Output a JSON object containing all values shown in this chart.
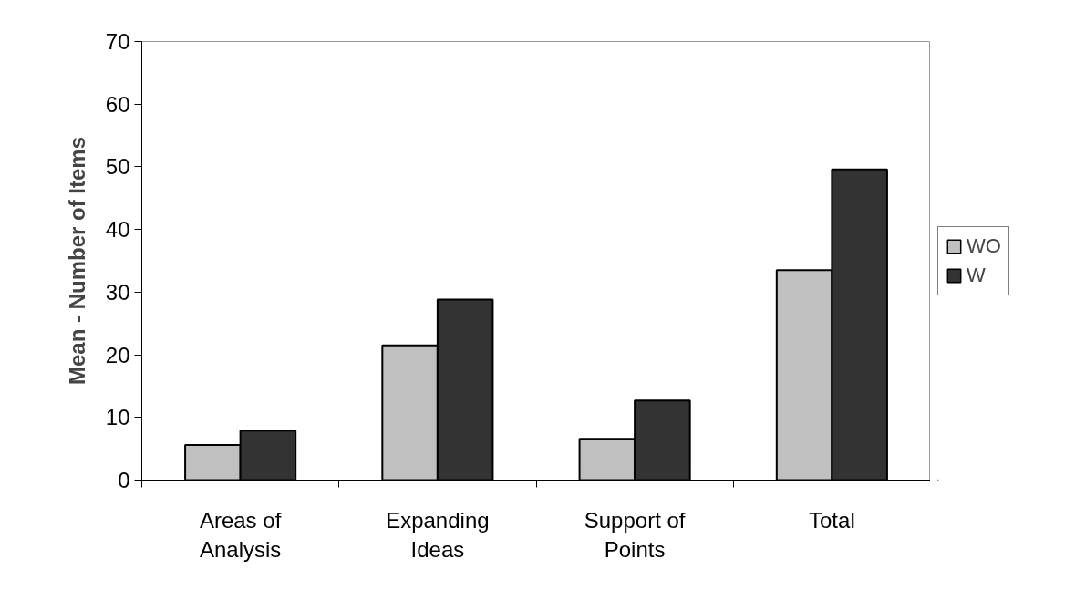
{
  "chart_data": {
    "type": "bar",
    "ylabel": "Mean - Number of Items",
    "categories": [
      "Areas of\nAnalysis",
      "Expanding\nIdeas",
      "Support of\nPoints",
      "Total"
    ],
    "series": [
      {
        "name": "WO",
        "color": "#c0c0c0",
        "values": [
          5.6,
          21.5,
          6.6,
          33.5
        ]
      },
      {
        "name": "W",
        "color": "#333333",
        "values": [
          7.9,
          28.8,
          12.7,
          49.6
        ]
      }
    ],
    "ylim": [
      0,
      70
    ],
    "yticks": [
      0,
      10,
      20,
      30,
      40,
      50,
      60,
      70
    ],
    "grid": false,
    "legend": "right"
  }
}
